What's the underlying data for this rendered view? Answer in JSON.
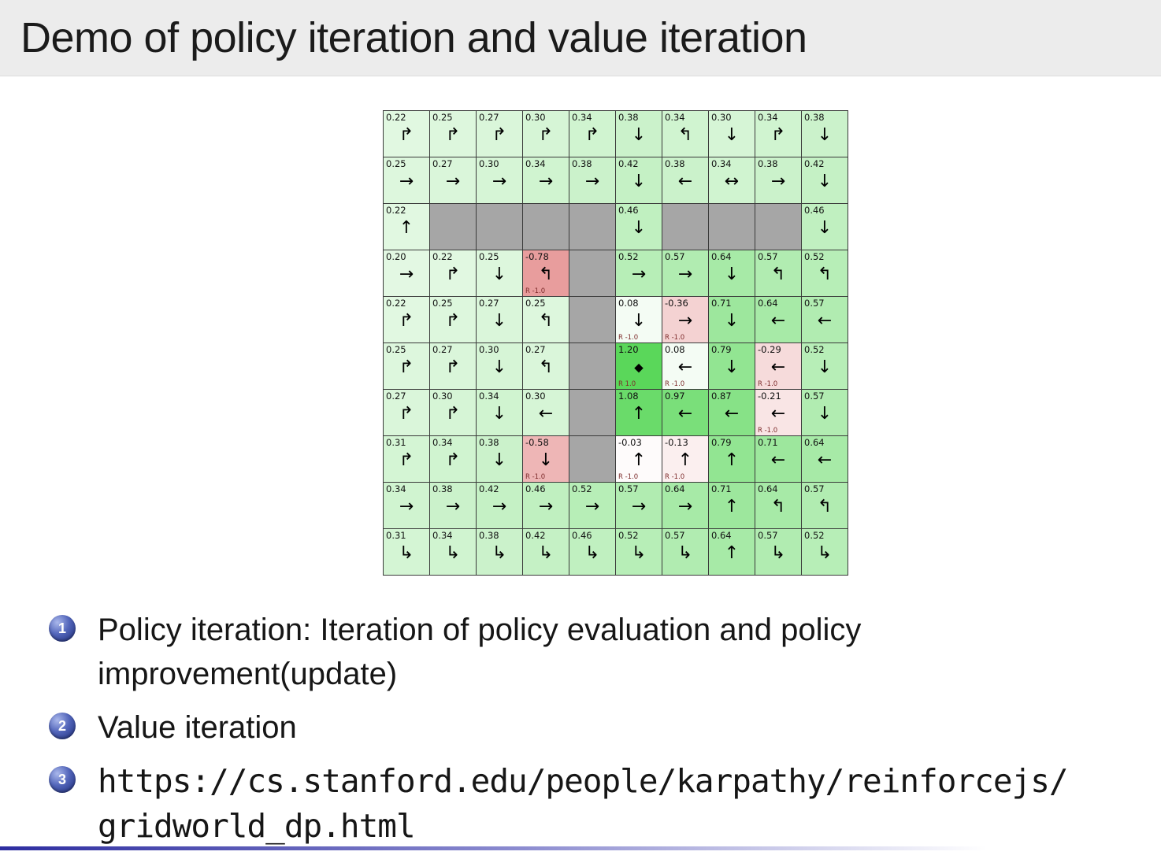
{
  "slide": {
    "title": "Demo of policy iteration and value iteration",
    "title_bg": "#ececec",
    "accent_blue": "#2d2da0",
    "items": [
      {
        "number": "1",
        "text": "Policy iteration: Iteration of policy evaluation and policy improvement(update)"
      },
      {
        "number": "2",
        "text": "Value iteration"
      },
      {
        "number": "3",
        "lines": [
          "https://cs.stanford.edu/people/karpathy/reinforcejs/",
          "gridworld_dp.html"
        ]
      }
    ]
  },
  "gridworld": {
    "rows": 10,
    "cols": 10,
    "wall_color": "#a6a6a6",
    "positive_reward_label": "R 1.0",
    "negative_reward_label": "R -1.0",
    "cells": [
      [
        {
          "v": "0.22",
          "n": 0.22,
          "a": "ur"
        },
        {
          "v": "0.25",
          "n": 0.25,
          "a": "ur"
        },
        {
          "v": "0.27",
          "n": 0.27,
          "a": "ur"
        },
        {
          "v": "0.30",
          "n": 0.3,
          "a": "ur"
        },
        {
          "v": "0.34",
          "n": 0.34,
          "a": "ur"
        },
        {
          "v": "0.38",
          "n": 0.38,
          "a": "d"
        },
        {
          "v": "0.34",
          "n": 0.34,
          "a": "ul"
        },
        {
          "v": "0.30",
          "n": 0.3,
          "a": "d"
        },
        {
          "v": "0.34",
          "n": 0.34,
          "a": "ur"
        },
        {
          "v": "0.38",
          "n": 0.38,
          "a": "d"
        }
      ],
      [
        {
          "v": "0.25",
          "n": 0.25,
          "a": "r"
        },
        {
          "v": "0.27",
          "n": 0.27,
          "a": "r"
        },
        {
          "v": "0.30",
          "n": 0.3,
          "a": "r"
        },
        {
          "v": "0.34",
          "n": 0.34,
          "a": "r"
        },
        {
          "v": "0.38",
          "n": 0.38,
          "a": "r"
        },
        {
          "v": "0.42",
          "n": 0.42,
          "a": "d"
        },
        {
          "v": "0.38",
          "n": 0.38,
          "a": "l"
        },
        {
          "v": "0.34",
          "n": 0.34,
          "a": "lr"
        },
        {
          "v": "0.38",
          "n": 0.38,
          "a": "r"
        },
        {
          "v": "0.42",
          "n": 0.42,
          "a": "d"
        }
      ],
      [
        {
          "v": "0.22",
          "n": 0.22,
          "a": "u"
        },
        {
          "wall": true
        },
        {
          "wall": true
        },
        {
          "wall": true
        },
        {
          "wall": true
        },
        {
          "v": "0.46",
          "n": 0.46,
          "a": "d"
        },
        {
          "wall": true
        },
        {
          "wall": true
        },
        {
          "wall": true
        },
        {
          "v": "0.46",
          "n": 0.46,
          "a": "d"
        }
      ],
      [
        {
          "v": "0.20",
          "n": 0.2,
          "a": "r"
        },
        {
          "v": "0.22",
          "n": 0.22,
          "a": "ur"
        },
        {
          "v": "0.25",
          "n": 0.25,
          "a": "d"
        },
        {
          "v": "-0.78",
          "n": -0.78,
          "a": "ul",
          "r": "R -1.0"
        },
        {
          "wall": true
        },
        {
          "v": "0.52",
          "n": 0.52,
          "a": "r"
        },
        {
          "v": "0.57",
          "n": 0.57,
          "a": "r"
        },
        {
          "v": "0.64",
          "n": 0.64,
          "a": "d"
        },
        {
          "v": "0.57",
          "n": 0.57,
          "a": "ul"
        },
        {
          "v": "0.52",
          "n": 0.52,
          "a": "ul"
        }
      ],
      [
        {
          "v": "0.22",
          "n": 0.22,
          "a": "ur"
        },
        {
          "v": "0.25",
          "n": 0.25,
          "a": "ur"
        },
        {
          "v": "0.27",
          "n": 0.27,
          "a": "d"
        },
        {
          "v": "0.25",
          "n": 0.25,
          "a": "ul"
        },
        {
          "wall": true
        },
        {
          "v": "0.08",
          "n": 0.08,
          "a": "d",
          "r": "R -1.0"
        },
        {
          "v": "-0.36",
          "n": -0.36,
          "a": "r",
          "r": "R -1.0"
        },
        {
          "v": "0.71",
          "n": 0.71,
          "a": "d"
        },
        {
          "v": "0.64",
          "n": 0.64,
          "a": "l"
        },
        {
          "v": "0.57",
          "n": 0.57,
          "a": "l"
        }
      ],
      [
        {
          "v": "0.25",
          "n": 0.25,
          "a": "ur"
        },
        {
          "v": "0.27",
          "n": 0.27,
          "a": "ur"
        },
        {
          "v": "0.30",
          "n": 0.3,
          "a": "d"
        },
        {
          "v": "0.27",
          "n": 0.27,
          "a": "ul"
        },
        {
          "wall": true
        },
        {
          "v": "1.20",
          "n": 1.2,
          "a": "star",
          "r": "R 1.0"
        },
        {
          "v": "0.08",
          "n": 0.08,
          "a": "l",
          "r": "R -1.0"
        },
        {
          "v": "0.79",
          "n": 0.79,
          "a": "d"
        },
        {
          "v": "-0.29",
          "n": -0.29,
          "a": "l",
          "r": "R -1.0"
        },
        {
          "v": "0.52",
          "n": 0.52,
          "a": "d"
        }
      ],
      [
        {
          "v": "0.27",
          "n": 0.27,
          "a": "ur"
        },
        {
          "v": "0.30",
          "n": 0.3,
          "a": "ur"
        },
        {
          "v": "0.34",
          "n": 0.34,
          "a": "d"
        },
        {
          "v": "0.30",
          "n": 0.3,
          "a": "l"
        },
        {
          "wall": true
        },
        {
          "v": "1.08",
          "n": 1.08,
          "a": "u"
        },
        {
          "v": "0.97",
          "n": 0.97,
          "a": "l"
        },
        {
          "v": "0.87",
          "n": 0.87,
          "a": "l"
        },
        {
          "v": "-0.21",
          "n": -0.21,
          "a": "l",
          "r": "R -1.0"
        },
        {
          "v": "0.57",
          "n": 0.57,
          "a": "d"
        }
      ],
      [
        {
          "v": "0.31",
          "n": 0.31,
          "a": "ur"
        },
        {
          "v": "0.34",
          "n": 0.34,
          "a": "ur"
        },
        {
          "v": "0.38",
          "n": 0.38,
          "a": "d"
        },
        {
          "v": "-0.58",
          "n": -0.58,
          "a": "d",
          "r": "R -1.0"
        },
        {
          "wall": true
        },
        {
          "v": "-0.03",
          "n": -0.03,
          "a": "u",
          "r": "R -1.0"
        },
        {
          "v": "-0.13",
          "n": -0.13,
          "a": "u",
          "r": "R -1.0"
        },
        {
          "v": "0.79",
          "n": 0.79,
          "a": "u"
        },
        {
          "v": "0.71",
          "n": 0.71,
          "a": "l"
        },
        {
          "v": "0.64",
          "n": 0.64,
          "a": "l"
        }
      ],
      [
        {
          "v": "0.34",
          "n": 0.34,
          "a": "r"
        },
        {
          "v": "0.38",
          "n": 0.38,
          "a": "r"
        },
        {
          "v": "0.42",
          "n": 0.42,
          "a": "r"
        },
        {
          "v": "0.46",
          "n": 0.46,
          "a": "r"
        },
        {
          "v": "0.52",
          "n": 0.52,
          "a": "r"
        },
        {
          "v": "0.57",
          "n": 0.57,
          "a": "r"
        },
        {
          "v": "0.64",
          "n": 0.64,
          "a": "r"
        },
        {
          "v": "0.71",
          "n": 0.71,
          "a": "u"
        },
        {
          "v": "0.64",
          "n": 0.64,
          "a": "ul"
        },
        {
          "v": "0.57",
          "n": 0.57,
          "a": "ul"
        }
      ],
      [
        {
          "v": "0.31",
          "n": 0.31,
          "a": "dr"
        },
        {
          "v": "0.34",
          "n": 0.34,
          "a": "dr"
        },
        {
          "v": "0.38",
          "n": 0.38,
          "a": "dr"
        },
        {
          "v": "0.42",
          "n": 0.42,
          "a": "dr"
        },
        {
          "v": "0.46",
          "n": 0.46,
          "a": "dr"
        },
        {
          "v": "0.52",
          "n": 0.52,
          "a": "dr"
        },
        {
          "v": "0.57",
          "n": 0.57,
          "a": "dr"
        },
        {
          "v": "0.64",
          "n": 0.64,
          "a": "u"
        },
        {
          "v": "0.57",
          "n": 0.57,
          "a": "dr"
        },
        {
          "v": "0.52",
          "n": 0.52,
          "a": "dr"
        }
      ]
    ]
  }
}
